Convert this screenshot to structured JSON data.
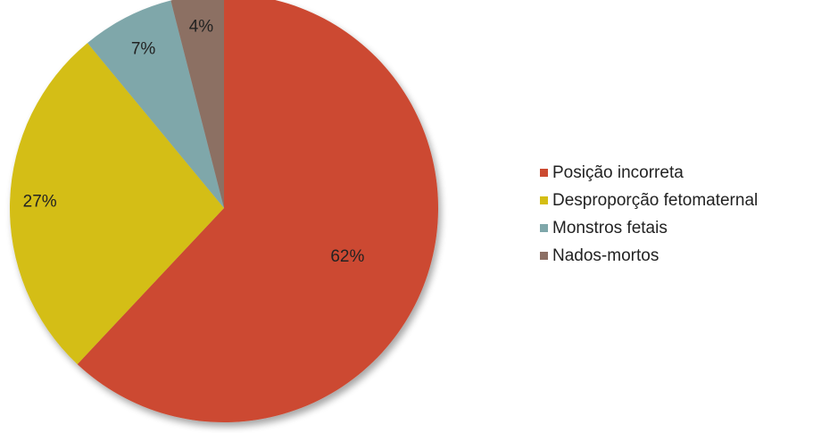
{
  "chart_data": {
    "type": "pie",
    "title": "",
    "legend_position": "right",
    "slices": [
      {
        "name": "Posição incorreta",
        "value": 62,
        "label": "62%",
        "color": "#cc4a30"
      },
      {
        "name": "Desproporção fetomaternal",
        "value": 27,
        "label": "27%",
        "color": "#d4be14"
      },
      {
        "name": "Monstros fetais",
        "value": 7,
        "label": "7%",
        "color": "#7fa7aa"
      },
      {
        "name": "Nados-mortos",
        "value": 4,
        "label": "4%",
        "color": "#8c6f64"
      }
    ]
  }
}
